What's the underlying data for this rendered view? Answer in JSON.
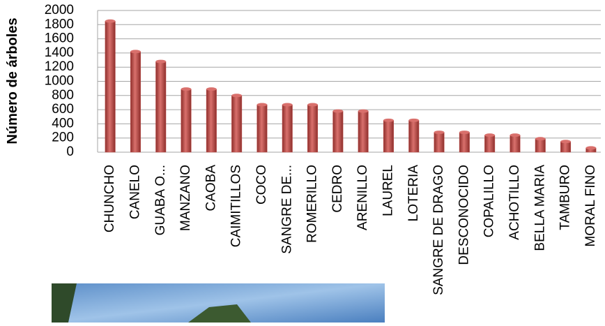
{
  "chart_data": {
    "type": "bar",
    "y_label": "Número de árboles",
    "categories": [
      "CHUNCHO",
      "CANELO",
      "GUABA O...",
      "MANZANO",
      "CAOBA",
      "CAIMITILLOS",
      "COCO",
      "SANGRE DE...",
      "ROMERILLO",
      "CEDRO",
      "ARENILLO",
      "LAUREL",
      "LOTERIA",
      "SANGRE DE DRAGO",
      "DESCONOCIDO",
      "COPALILLO",
      "ACHOTILLO",
      "BELLA MARIA",
      "TAMBURO",
      "MORAL FINO"
    ],
    "values": [
      1850,
      1420,
      1280,
      890,
      890,
      800,
      670,
      670,
      670,
      580,
      580,
      450,
      450,
      280,
      280,
      240,
      240,
      190,
      150,
      60
    ],
    "color": "#c0504d",
    "ylim": [
      0,
      2000
    ],
    "yticks": [
      0,
      200,
      400,
      600,
      800,
      1000,
      1200,
      1400,
      1600,
      1800,
      2000
    ],
    "grid": true
  }
}
